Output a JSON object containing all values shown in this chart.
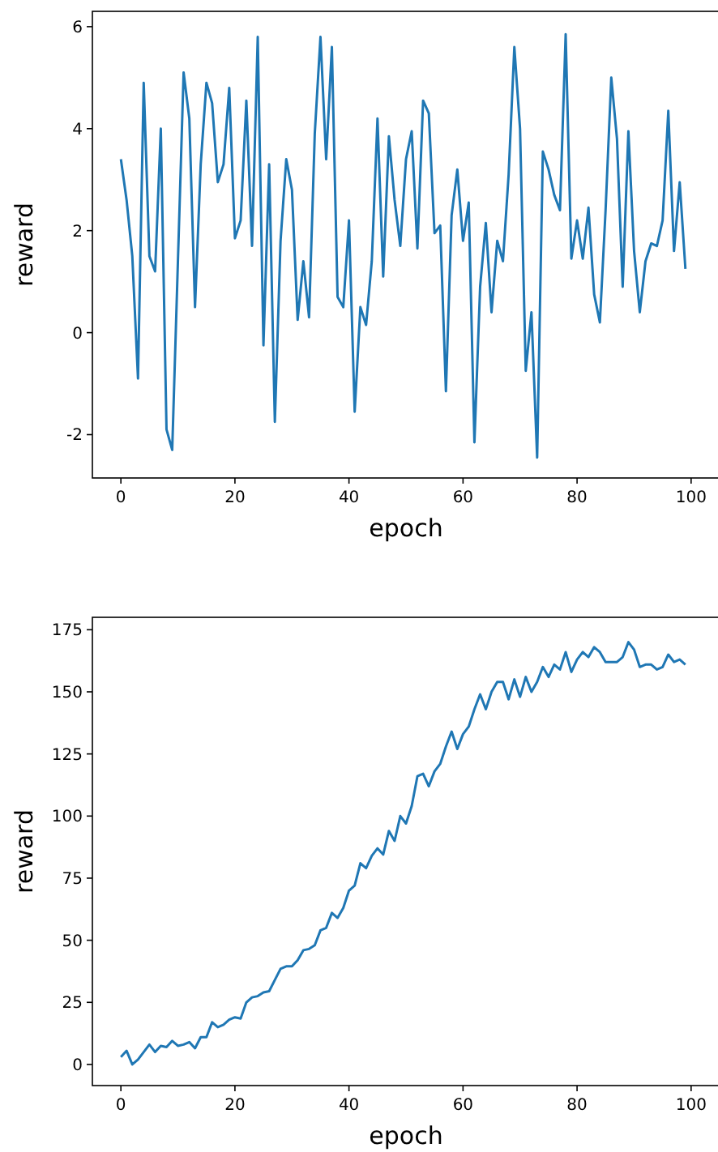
{
  "chart_data": [
    {
      "type": "line",
      "xlabel": "epoch",
      "ylabel": "reward",
      "x": [
        0,
        1,
        2,
        3,
        4,
        5,
        6,
        7,
        8,
        9,
        10,
        11,
        12,
        13,
        14,
        15,
        16,
        17,
        18,
        19,
        20,
        21,
        22,
        23,
        24,
        25,
        26,
        27,
        28,
        29,
        30,
        31,
        32,
        33,
        34,
        35,
        36,
        37,
        38,
        39,
        40,
        41,
        42,
        43,
        44,
        45,
        46,
        47,
        48,
        49,
        50,
        51,
        52,
        53,
        54,
        55,
        56,
        57,
        58,
        59,
        60,
        61,
        62,
        63,
        64,
        65,
        66,
        67,
        68,
        69,
        70,
        71,
        72,
        73,
        74,
        75,
        76,
        77,
        78,
        79,
        80,
        81,
        82,
        83,
        84,
        85,
        86,
        87,
        88,
        89,
        90,
        91,
        92,
        93,
        94,
        95,
        96,
        97,
        98,
        99
      ],
      "series": [
        {
          "color": "#1f77b4",
          "values": [
            3.4,
            2.6,
            1.5,
            -0.9,
            4.9,
            1.5,
            1.2,
            4.0,
            -1.9,
            -2.3,
            1.4,
            5.1,
            4.2,
            0.5,
            3.3,
            4.9,
            4.5,
            2.95,
            3.3,
            4.8,
            1.85,
            2.2,
            4.55,
            1.7,
            5.8,
            -0.25,
            3.3,
            -1.75,
            1.8,
            3.4,
            2.8,
            0.25,
            1.4,
            0.3,
            3.9,
            5.8,
            3.4,
            5.6,
            0.7,
            0.5,
            2.2,
            -1.55,
            0.5,
            0.15,
            1.4,
            4.2,
            1.1,
            3.85,
            2.6,
            1.7,
            3.4,
            3.95,
            1.65,
            4.55,
            4.3,
            1.95,
            2.1,
            -1.15,
            2.3,
            3.2,
            1.8,
            2.55,
            -2.15,
            0.9,
            2.15,
            0.4,
            1.8,
            1.4,
            3.1,
            5.6,
            4.0,
            -0.75,
            0.4,
            -2.45,
            3.55,
            3.2,
            2.7,
            2.4,
            5.85,
            1.45,
            2.2,
            1.45,
            2.45,
            0.75,
            0.2,
            2.4,
            5.0,
            3.8,
            0.9,
            3.95,
            1.6,
            0.4,
            1.4,
            1.75,
            1.7,
            2.2,
            4.35,
            1.6,
            2.95,
            1.25
          ]
        }
      ],
      "xlim": [
        -5,
        105
      ],
      "xticks": [
        0,
        20,
        40,
        60,
        80,
        100
      ],
      "ylim": [
        -2.85,
        6.3
      ],
      "yticks": [
        -2,
        0,
        2,
        4,
        6
      ],
      "grid": false
    },
    {
      "type": "line",
      "xlabel": "epoch",
      "ylabel": "reward",
      "x": [
        0,
        1,
        2,
        3,
        4,
        5,
        6,
        7,
        8,
        9,
        10,
        11,
        12,
        13,
        14,
        15,
        16,
        17,
        18,
        19,
        20,
        21,
        22,
        23,
        24,
        25,
        26,
        27,
        28,
        29,
        30,
        31,
        32,
        33,
        34,
        35,
        36,
        37,
        38,
        39,
        40,
        41,
        42,
        43,
        44,
        45,
        46,
        47,
        48,
        49,
        50,
        51,
        52,
        53,
        54,
        55,
        56,
        57,
        58,
        59,
        60,
        61,
        62,
        63,
        64,
        65,
        66,
        67,
        68,
        69,
        70,
        71,
        72,
        73,
        74,
        75,
        76,
        77,
        78,
        79,
        80,
        81,
        82,
        83,
        84,
        85,
        86,
        87,
        88,
        89,
        90,
        91,
        92,
        93,
        94,
        95,
        96,
        97,
        98,
        99
      ],
      "series": [
        {
          "color": "#1f77b4",
          "values": [
            3,
            5.5,
            0,
            2,
            5,
            8,
            5,
            7.5,
            7,
            9.5,
            7.5,
            8,
            9,
            6.5,
            11,
            11,
            17,
            15,
            16,
            18,
            19,
            18.5,
            25,
            27,
            27.5,
            29,
            29.5,
            34,
            38.5,
            39.5,
            39.5,
            42,
            46,
            46.5,
            48,
            54,
            55,
            61,
            59,
            63,
            70,
            72,
            81,
            79,
            84,
            87,
            84.5,
            94,
            90,
            100,
            97,
            104,
            116,
            117,
            112,
            118,
            121,
            128,
            134,
            127,
            133,
            136,
            143,
            149,
            143,
            150,
            154,
            154,
            147,
            155,
            148,
            156,
            150,
            154,
            160,
            156,
            161,
            159,
            166,
            158,
            163,
            166,
            164,
            168,
            166,
            162,
            162,
            162,
            164,
            170,
            167,
            160,
            161,
            161,
            159,
            160,
            165,
            162,
            163,
            161
          ]
        }
      ],
      "xlim": [
        -5,
        105
      ],
      "xticks": [
        0,
        20,
        40,
        60,
        80,
        100
      ],
      "ylim": [
        -8.5,
        180
      ],
      "yticks": [
        0,
        25,
        50,
        75,
        100,
        125,
        150,
        175
      ],
      "grid": false
    }
  ]
}
